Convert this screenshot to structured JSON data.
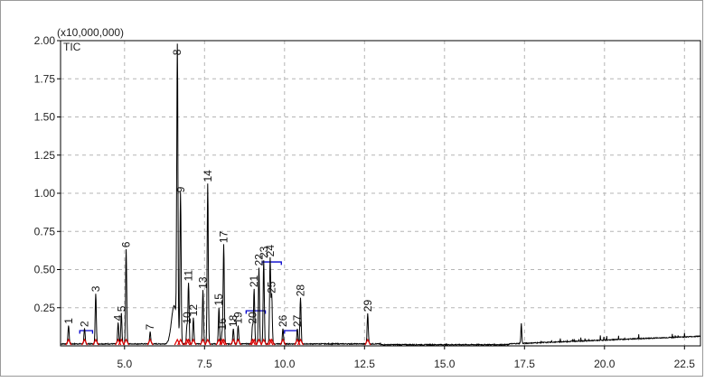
{
  "chart_data": {
    "type": "line",
    "title": "",
    "multiplier": "(x10,000,000)",
    "trace_name": "TIC",
    "xlabel": "",
    "ylabel": "",
    "xlim": [
      3.0,
      23.0
    ],
    "ylim": [
      0.0,
      2.0
    ],
    "x_ticks": [
      5.0,
      7.5,
      10.0,
      12.5,
      15.0,
      17.5,
      20.0,
      22.5
    ],
    "x_tick_labels": [
      "5.0",
      "7.5",
      "10.0",
      "12.5",
      "15.0",
      "17.5",
      "20.0",
      "22.5"
    ],
    "y_ticks": [
      0.25,
      0.5,
      0.75,
      1.0,
      1.25,
      1.5,
      1.75,
      2.0
    ],
    "y_tick_labels": [
      "0.25",
      "0.50",
      "0.75",
      "1.00",
      "1.25",
      "1.50",
      "1.75",
      "2.00"
    ],
    "grid": true,
    "line_color": "#000000",
    "marker_color": "#e00000",
    "baseline_color": "#0000cc",
    "peaks": [
      {
        "label": "1",
        "x": 3.25,
        "y": 0.12
      },
      {
        "label": "2",
        "x": 3.75,
        "y": 0.1
      },
      {
        "label": "3",
        "x": 4.1,
        "y": 0.33
      },
      {
        "label": "4",
        "x": 4.8,
        "y": 0.14
      },
      {
        "label": "5",
        "x": 4.9,
        "y": 0.2
      },
      {
        "label": "6",
        "x": 5.05,
        "y": 0.62
      },
      {
        "label": "7",
        "x": 5.8,
        "y": 0.08
      },
      {
        "label": "8",
        "x": 6.65,
        "y": 1.88
      },
      {
        "label": "9",
        "x": 6.75,
        "y": 0.98
      },
      {
        "label": "10",
        "x": 6.95,
        "y": 0.12
      },
      {
        "label": "11",
        "x": 7.0,
        "y": 0.4
      },
      {
        "label": "12",
        "x": 7.15,
        "y": 0.17
      },
      {
        "label": "13",
        "x": 7.45,
        "y": 0.35
      },
      {
        "label": "14",
        "x": 7.6,
        "y": 1.05
      },
      {
        "label": "15",
        "x": 7.95,
        "y": 0.24
      },
      {
        "label": "16",
        "x": 8.05,
        "y": 0.08
      },
      {
        "label": "17",
        "x": 8.1,
        "y": 0.65
      },
      {
        "label": "18",
        "x": 8.4,
        "y": 0.1
      },
      {
        "label": "19",
        "x": 8.55,
        "y": 0.12
      },
      {
        "label": "20",
        "x": 9.0,
        "y": 0.12
      },
      {
        "label": "21",
        "x": 9.05,
        "y": 0.36
      },
      {
        "label": "22",
        "x": 9.2,
        "y": 0.5
      },
      {
        "label": "23",
        "x": 9.35,
        "y": 0.55
      },
      {
        "label": "24",
        "x": 9.55,
        "y": 0.56
      },
      {
        "label": "25",
        "x": 9.6,
        "y": 0.32
      },
      {
        "label": "26",
        "x": 9.95,
        "y": 0.1
      },
      {
        "label": "27",
        "x": 10.4,
        "y": 0.1
      },
      {
        "label": "28",
        "x": 10.5,
        "y": 0.3
      },
      {
        "label": "29",
        "x": 12.6,
        "y": 0.2
      }
    ],
    "other_features": [
      {
        "x": 17.4,
        "y": 0.13
      },
      {
        "x": 23.0,
        "y": 0.07
      }
    ]
  }
}
